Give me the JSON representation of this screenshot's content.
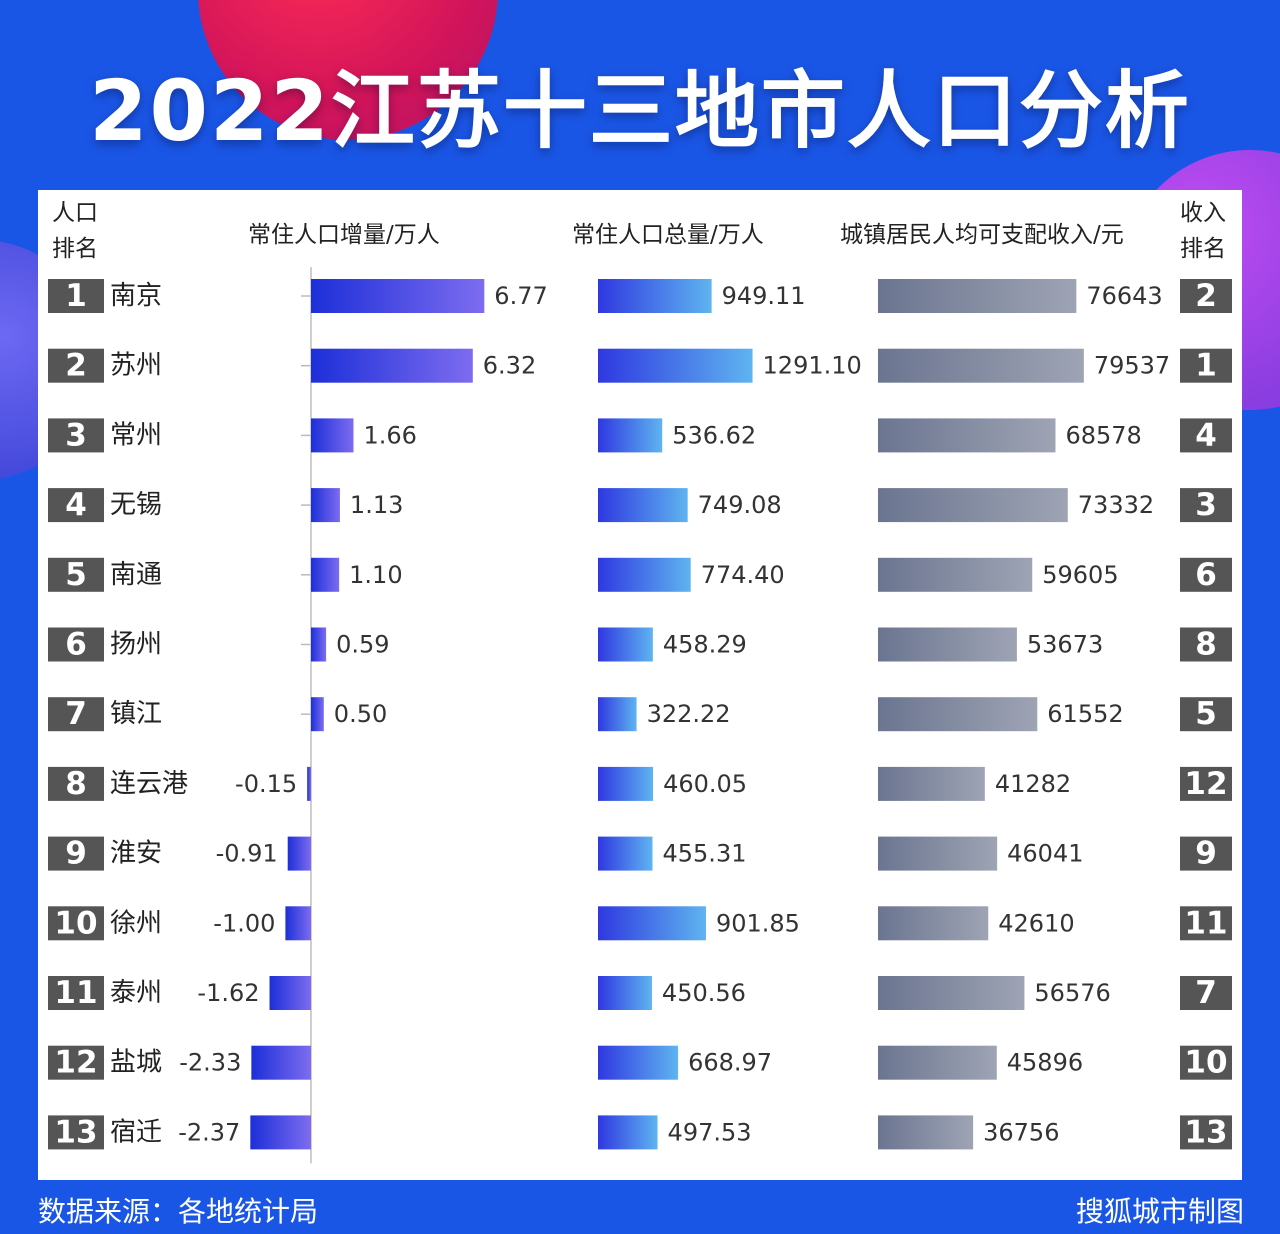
{
  "title": "2022江苏十三地市人口分析",
  "headers": {
    "pop_rank": [
      "人口",
      "排名"
    ],
    "increase": "常住人口增量/万人",
    "total": "常住人口总量/万人",
    "income": "城镇居民人均可支配收入/元",
    "income_rank": [
      "收入",
      "排名"
    ]
  },
  "footer": {
    "source": "数据来源：各地统计局",
    "credit": "搜狐城市制图"
  },
  "colors": {
    "background": "#1a56e6",
    "rank_box": "#555555",
    "increase_bar": [
      "#1c2fd8",
      "#7d6cf0"
    ],
    "total_bar": [
      "#2f38e0",
      "#5fb4f0"
    ],
    "income_bar": [
      "#6b7590",
      "#9ea4b4"
    ]
  },
  "chart_data": {
    "type": "bar",
    "categories": [
      "南京",
      "苏州",
      "常州",
      "无锡",
      "南通",
      "扬州",
      "镇江",
      "连云港",
      "淮安",
      "徐州",
      "泰州",
      "盐城",
      "宿迁"
    ],
    "population_rank": [
      "1",
      "2",
      "3",
      "4",
      "5",
      "6",
      "7",
      "8",
      "9",
      "10",
      "11",
      "12",
      "13"
    ],
    "income_rank": [
      "2",
      "1",
      "4",
      "3",
      "6",
      "8",
      "5",
      "12",
      "9",
      "11",
      "7",
      "10",
      "13"
    ],
    "series": [
      {
        "name": "常住人口增量/万人",
        "values": [
          6.77,
          6.32,
          1.66,
          1.13,
          1.1,
          0.59,
          0.5,
          -0.15,
          -0.91,
          -1.0,
          -1.62,
          -2.33,
          -2.37
        ],
        "labels": [
          "6.77",
          "6.32",
          "1.66",
          "1.13",
          "1.10",
          "0.59",
          "0.50",
          "-0.15",
          "-0.91",
          "-1.00",
          "-1.62",
          "-2.33",
          "-2.37"
        ]
      },
      {
        "name": "常住人口总量/万人",
        "values": [
          949.11,
          1291.1,
          536.62,
          749.08,
          774.4,
          458.29,
          322.22,
          460.05,
          455.31,
          901.85,
          450.56,
          668.97,
          497.53
        ],
        "labels": [
          "949.11",
          "1291.10",
          "536.62",
          "749.08",
          "774.40",
          "458.29",
          "322.22",
          "460.05",
          "455.31",
          "901.85",
          "450.56",
          "668.97",
          "497.53"
        ]
      },
      {
        "name": "城镇居民人均可支配收入/元",
        "values": [
          76643,
          79537,
          68578,
          73332,
          59605,
          53673,
          61552,
          41282,
          46041,
          42610,
          56576,
          45896,
          36756
        ],
        "labels": [
          "76643",
          "79537",
          "68578",
          "73332",
          "59605",
          "53673",
          "61552",
          "41282",
          "46041",
          "42610",
          "56576",
          "45896",
          "36756"
        ]
      }
    ]
  }
}
